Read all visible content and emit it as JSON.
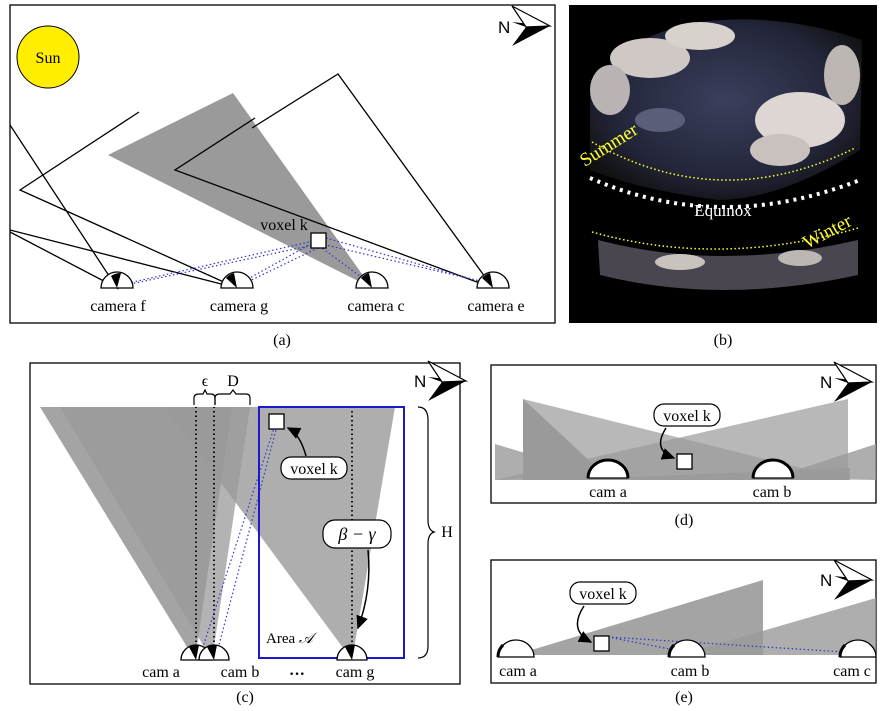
{
  "compass_label": "N",
  "panel_a": {
    "caption": "(a)",
    "sun_label": "Sun",
    "voxel_label": "voxel k",
    "cameras": [
      "camera f",
      "camera g",
      "camera c",
      "camera e"
    ]
  },
  "panel_b": {
    "caption": "(b)",
    "summer_label": "Summer",
    "equinox_label": "Equinox",
    "winter_label": "Winter"
  },
  "panel_c": {
    "caption": "(c)",
    "epsilon_label": "ϵ",
    "d_label": "D",
    "h_label": "H",
    "voxel_label": "voxel k",
    "angle_label": "β − γ",
    "area_label": "Area",
    "area_symbol": "𝒜",
    "cameras": [
      "cam a",
      "cam b",
      "cam g"
    ],
    "ellipsis": "···"
  },
  "panel_d": {
    "caption": "(d)",
    "voxel_label": "voxel k",
    "cameras": [
      "cam a",
      "cam b"
    ]
  },
  "panel_e": {
    "caption": "(e)",
    "voxel_label": "voxel k",
    "cameras": [
      "cam a",
      "cam b",
      "cam c"
    ]
  },
  "colors": {
    "sun": "#ffee00",
    "view_cone": "#9a9a9a",
    "area_box": "#1a1acc",
    "ray": "#3333cc",
    "season_line": "#ffff33"
  }
}
